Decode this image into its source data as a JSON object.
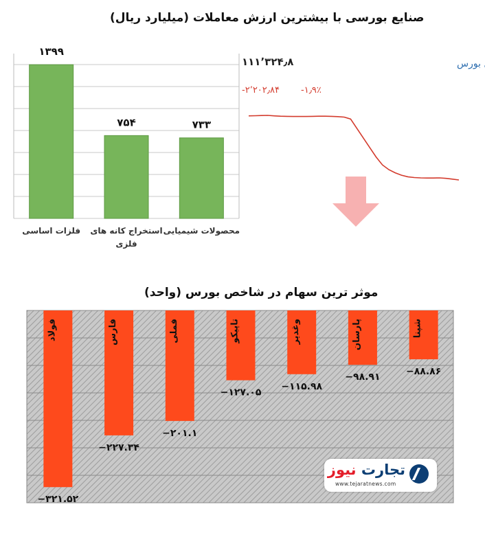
{
  "colors": {
    "bar_green": "#77b55a",
    "bar_green_edge": "#5e9a43",
    "bar_red": "#fe4a1c",
    "line_red": "#d33a2c",
    "index_label_blue": "#2e6fb0",
    "arrow_pink": "#f7b1b1",
    "logo_blue": "#0c3e74"
  },
  "top_section": {
    "title": "صنایع بورسی با بیشترین ارزش معاملات  (میلیارد ریال)"
  },
  "index_panel": {
    "name": "کل بورس",
    "value": "۱۱۱٬۳۲۴٫۸",
    "change": "-۲٬۲۰۲٫۸۴",
    "change_percent": "-۱٫۹٪",
    "trend_icon": "down-arrow-icon",
    "intraday_relative": [
      0.0,
      0.01,
      0.02,
      0.03,
      0.0,
      -0.02,
      -0.03,
      -0.04,
      -0.04,
      -0.04,
      -0.03,
      -0.02,
      -0.02,
      -0.03,
      -0.05,
      -0.08,
      -0.2,
      -0.8,
      -1.4,
      -2.0,
      -2.6,
      -3.1,
      -3.4,
      -3.6,
      -3.75,
      -3.85,
      -3.9,
      -3.92,
      -3.93,
      -3.93,
      -3.92,
      -3.95,
      -4.0,
      -4.05
    ]
  },
  "logo": {
    "name_part1": "تجارت",
    "name_part2": "نیوز",
    "url": "www.tejaratnews.com",
    "icon": "tejarat-logo-icon"
  },
  "chart_data": [
    {
      "type": "bar",
      "title": "صنایع بورسی با بیشترین ارزش معاملات  (میلیارد ریال)",
      "categories": [
        "فلزات اساسی",
        "استخراج کانه های فلزی",
        "محصولات شیمیایی"
      ],
      "values": [
        1399,
        754,
        733
      ],
      "labels": [
        "۱۳۹۹",
        "۷۵۴",
        "۷۳۳"
      ],
      "ylim": [
        0,
        1500
      ],
      "grid": true,
      "legend": "none"
    },
    {
      "type": "bar",
      "title": "موثر ترین سهام در شاخص بورس (واحد)",
      "categories": [
        "فولاد",
        "فارس",
        "فملی",
        "تاپیکو",
        "وغدیر",
        "پارسان",
        "شپنا"
      ],
      "values": [
        -321.52,
        -227.34,
        -201.1,
        -127.05,
        -115.98,
        -98.91,
        -88.86
      ],
      "labels": [
        "−۳۲۱.۵۲",
        "−۲۲۷.۳۴",
        "−۲۰۱.۱",
        "−۱۲۷.۰۵",
        "−۱۱۵.۹۸",
        "−۹۸.۹۱",
        "−۸۸.۸۶"
      ],
      "ylim": [
        -350,
        0
      ],
      "grid": true,
      "legend": "none"
    }
  ]
}
